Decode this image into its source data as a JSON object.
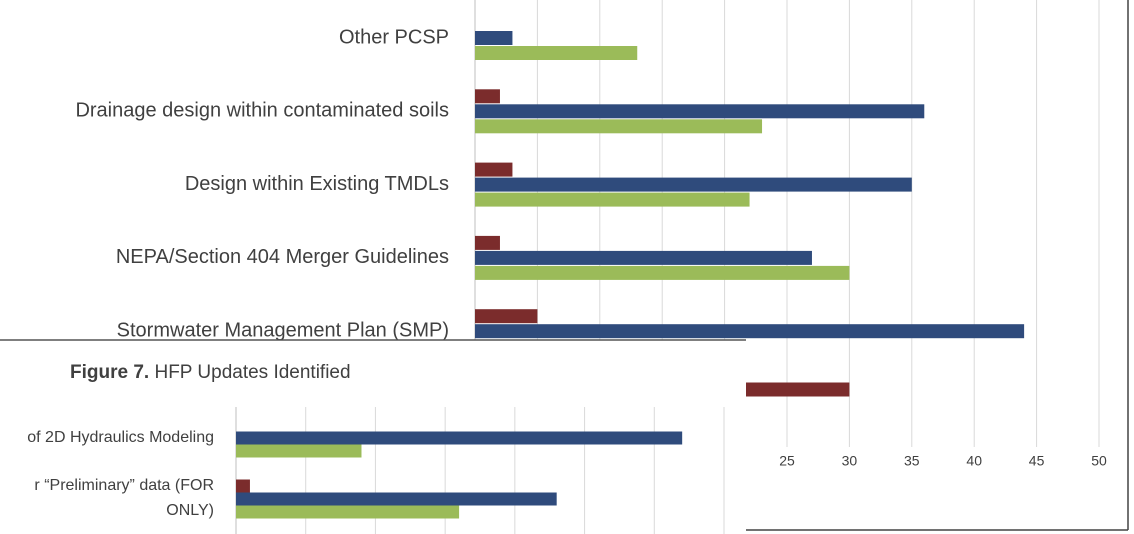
{
  "chart_data": [
    {
      "type": "hbar",
      "categories": [
        "Other PCSP",
        "Drainage design within contaminated soils",
        "Design within Existing TMDLs",
        "NEPA/Section 404 Merger Guidelines",
        "Stormwater Management Plan (SMP)",
        null
      ],
      "series": [
        {
          "color": "#7b2c2c",
          "values": [
            null,
            2,
            3,
            2,
            5,
            30
          ]
        },
        {
          "color": "#2f4b7c",
          "values": [
            3,
            36,
            35,
            27,
            44,
            null
          ]
        },
        {
          "color": "#9bbb59",
          "values": [
            13,
            23,
            22,
            30,
            null,
            null
          ]
        }
      ],
      "xlim": [
        0,
        50
      ],
      "xticks": [
        0,
        5,
        10,
        15,
        20,
        25,
        30,
        35,
        40,
        45,
        50
      ],
      "grid": true
    },
    {
      "type": "hbar",
      "title": [
        "Figure 7.",
        "HFP Updates Identified"
      ],
      "categories": [
        [
          "of 2D Hydraulics Modeling"
        ],
        [
          "r “Preliminary” data (FOR",
          "ONLY)"
        ]
      ],
      "series": [
        {
          "color": "#7b2c2c",
          "values": [
            null,
            1
          ]
        },
        {
          "color": "#2f4b7c",
          "values": [
            32,
            23
          ]
        },
        {
          "color": "#9bbb59",
          "values": [
            9,
            16
          ]
        }
      ],
      "xlim": [
        0,
        35
      ],
      "xticks": [
        0,
        5,
        10,
        15,
        20,
        25,
        30,
        35
      ],
      "grid": true
    }
  ]
}
